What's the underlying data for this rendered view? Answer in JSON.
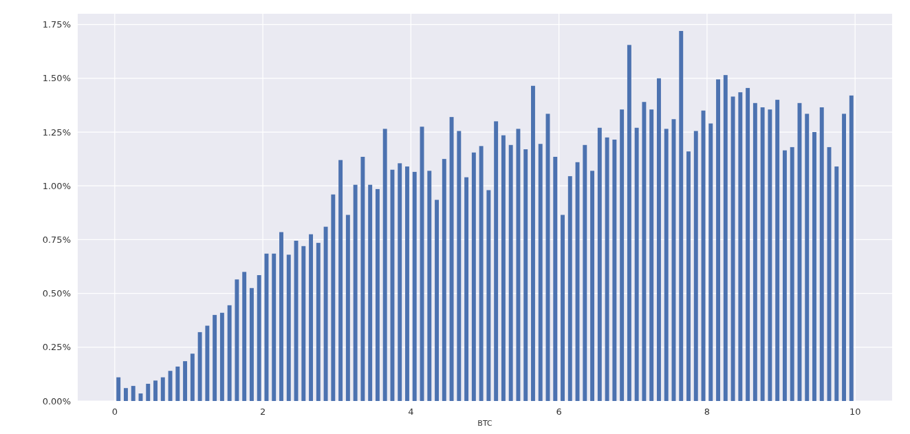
{
  "chart_data": {
    "type": "bar",
    "xlabel": "BTC",
    "x": [
      0.05,
      0.15,
      0.25,
      0.35,
      0.45,
      0.55,
      0.65,
      0.75,
      0.85,
      0.95,
      1.05,
      1.15,
      1.25,
      1.35,
      1.45,
      1.55,
      1.65,
      1.75,
      1.85,
      1.95,
      2.05,
      2.15,
      2.25,
      2.35,
      2.45,
      2.55,
      2.65,
      2.75,
      2.85,
      2.95,
      3.05,
      3.15,
      3.25,
      3.35,
      3.45,
      3.55,
      3.65,
      3.75,
      3.85,
      3.95,
      4.05,
      4.15,
      4.25,
      4.35,
      4.45,
      4.55,
      4.65,
      4.75,
      4.85,
      4.95,
      5.05,
      5.15,
      5.25,
      5.35,
      5.45,
      5.55,
      5.65,
      5.75,
      5.85,
      5.95,
      6.05,
      6.15,
      6.25,
      6.35,
      6.45,
      6.55,
      6.65,
      6.75,
      6.85,
      6.95,
      7.05,
      7.15,
      7.25,
      7.35,
      7.45,
      7.55,
      7.65,
      7.75,
      7.85,
      7.95,
      8.05,
      8.15,
      8.25,
      8.35,
      8.45,
      8.55,
      8.65,
      8.75,
      8.85,
      8.95,
      9.05,
      9.15,
      9.25,
      9.35,
      9.45,
      9.55,
      9.65,
      9.75,
      9.85,
      9.95
    ],
    "values": [
      0.11,
      0.06,
      0.07,
      0.035,
      0.08,
      0.095,
      0.11,
      0.14,
      0.16,
      0.185,
      0.22,
      0.32,
      0.35,
      0.4,
      0.41,
      0.445,
      0.565,
      0.6,
      0.525,
      0.585,
      0.685,
      0.685,
      0.785,
      0.68,
      0.745,
      0.72,
      0.775,
      0.735,
      0.81,
      0.96,
      1.12,
      0.865,
      1.005,
      1.135,
      1.005,
      0.985,
      1.265,
      1.075,
      1.105,
      1.09,
      1.065,
      1.275,
      1.07,
      0.935,
      1.125,
      1.32,
      1.255,
      1.04,
      1.155,
      1.185,
      0.98,
      1.3,
      1.235,
      1.19,
      1.265,
      1.17,
      1.465,
      1.195,
      1.335,
      1.135,
      0.865,
      1.045,
      1.11,
      1.19,
      1.07,
      1.27,
      1.225,
      1.215,
      1.355,
      1.655,
      1.27,
      1.39,
      1.355,
      1.5,
      1.265,
      1.31,
      1.72,
      1.16,
      1.255,
      1.35,
      1.29,
      1.495,
      1.515,
      1.415,
      1.435,
      1.455,
      1.385,
      1.365,
      1.355,
      1.4,
      1.165,
      1.18,
      1.385,
      1.335,
      1.25,
      1.365,
      1.18,
      1.09,
      1.335,
      1.42
    ],
    "color": "#4c72b0",
    "xlim": [
      -0.5,
      10.5
    ],
    "xticks": [
      0,
      2,
      4,
      6,
      8,
      10
    ],
    "ylim": [
      0,
      1.8
    ],
    "yticks": [
      {
        "value": 0,
        "label": "0.00%"
      },
      {
        "value": 0.25,
        "label": "0.25%"
      },
      {
        "value": 0.5,
        "label": "0.50%"
      },
      {
        "value": 0.75,
        "label": "0.75%"
      },
      {
        "value": 1,
        "label": "1.00%"
      },
      {
        "value": 1.25,
        "label": "1.25%"
      },
      {
        "value": 1.5,
        "label": "1.50%"
      },
      {
        "value": 1.75,
        "label": "1.75%"
      }
    ],
    "grid": true
  }
}
